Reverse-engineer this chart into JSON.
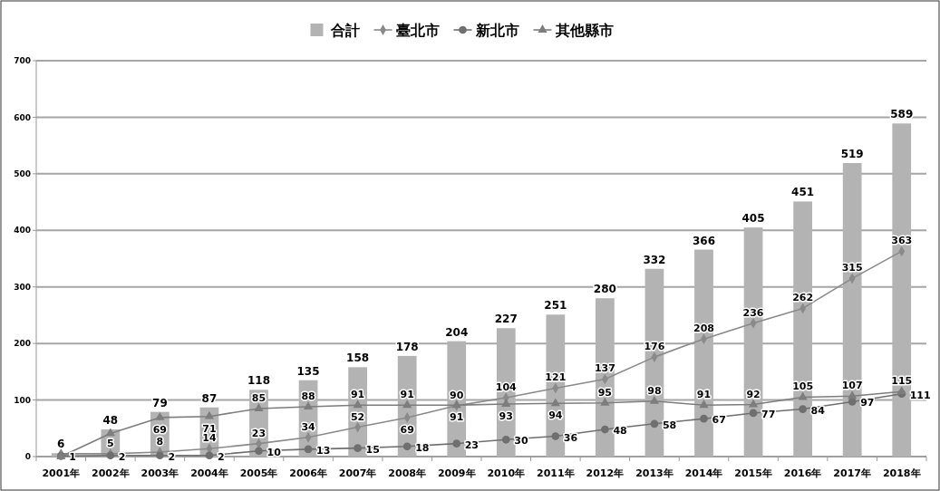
{
  "chart_data": {
    "type": "bar",
    "categories": [
      "2001年",
      "2002年",
      "2003年",
      "2004年",
      "2005年",
      "2006年",
      "2007年",
      "2008年",
      "2009年",
      "2010年",
      "2011年",
      "2012年",
      "2013年",
      "2014年",
      "2015年",
      "2016年",
      "2017年",
      "2018年"
    ],
    "series": [
      {
        "name": "合計",
        "color": "#b3b3b3",
        "values": [
          6,
          48,
          79,
          87,
          118,
          135,
          158,
          178,
          204,
          227,
          251,
          280,
          332,
          366,
          405,
          451,
          519,
          589
        ],
        "value_labels": [
          "6",
          "48",
          "79",
          "87",
          "118",
          "135",
          "158",
          "178",
          "204",
          "227",
          "251",
          "280",
          "332",
          "366",
          "405",
          "451",
          "519",
          "589"
        ]
      },
      {
        "name": "臺北市",
        "type": "line",
        "marker": "diamond",
        "color": "#8a8a8a",
        "values": [
          5,
          5,
          8,
          14,
          23,
          34,
          52,
          69,
          90,
          104,
          121,
          137,
          176,
          208,
          236,
          262,
          315,
          363
        ],
        "value_labels": [
          null,
          "5",
          "8",
          "14",
          "23",
          "34",
          "52",
          "69",
          "90",
          "104",
          "121",
          "137",
          "176",
          "208",
          "236",
          "262",
          "315",
          "363"
        ]
      },
      {
        "name": "新北市",
        "type": "line",
        "marker": "circle",
        "color": "#6f6f6f",
        "values": [
          1,
          2,
          2,
          2,
          10,
          13,
          15,
          18,
          23,
          30,
          36,
          48,
          58,
          67,
          77,
          84,
          97,
          111
        ],
        "value_labels": [
          "1",
          "2",
          "2",
          "2",
          "10",
          "13",
          "15",
          "18",
          "23",
          "30",
          "36",
          "48",
          "58",
          "67",
          "77",
          "84",
          "97",
          "111"
        ]
      },
      {
        "name": "其他縣市",
        "type": "line",
        "marker": "triangle",
        "color": "#7d7d7d",
        "values": [
          0,
          41,
          69,
          71,
          85,
          88,
          91,
          91,
          91,
          93,
          94,
          95,
          98,
          91,
          92,
          105,
          107,
          115
        ],
        "value_labels": [
          null,
          null,
          "69",
          "71",
          "85",
          "88",
          "91",
          "91",
          "91",
          "93",
          "94",
          "95",
          "98",
          "91",
          "92",
          "105",
          "107",
          "115"
        ]
      }
    ],
    "ylim": [
      0,
      700
    ],
    "yticks": [
      0,
      100,
      200,
      300,
      400,
      500,
      600,
      700
    ],
    "grid": "y",
    "legend": "top"
  }
}
